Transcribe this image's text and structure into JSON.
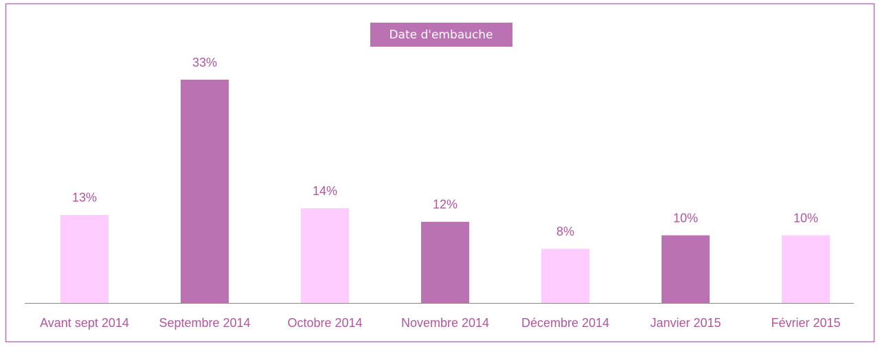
{
  "chart_data": {
    "type": "bar",
    "title": "Date d'embauche",
    "categories": [
      "Avant sept 2014",
      "Septembre 2014",
      "Octobre 2014",
      "Novembre 2014",
      "Décembre 2014",
      "Janvier 2015",
      "Février 2015"
    ],
    "values": [
      13,
      33,
      14,
      12,
      8,
      10,
      10
    ],
    "value_labels": [
      "13%",
      "33%",
      "14%",
      "12%",
      "8%",
      "10%",
      "10%"
    ],
    "colors": [
      "#ffccff",
      "#bb72b2",
      "#ffccff",
      "#bb72b2",
      "#ffccff",
      "#bb72b2",
      "#ffccff"
    ]
  }
}
